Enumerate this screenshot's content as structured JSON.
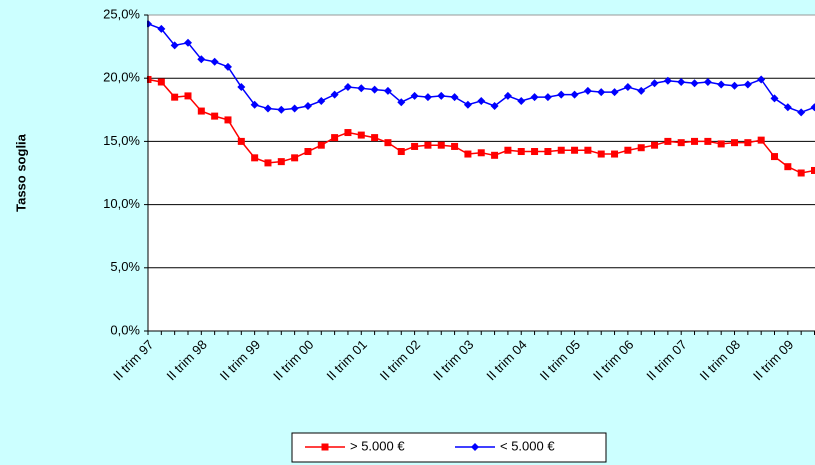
{
  "chart_data": {
    "type": "line",
    "y_label": "Tasso soglia",
    "categories": [
      "II trim 97",
      null,
      null,
      null,
      "II trim 98",
      null,
      null,
      null,
      "II trim 99",
      null,
      null,
      null,
      "II trim 00",
      null,
      null,
      null,
      "II trim 01",
      null,
      null,
      null,
      "II trim 02",
      null,
      null,
      null,
      "II trim 03",
      null,
      null,
      null,
      "II trim 04",
      null,
      null,
      null,
      "II trim 05",
      null,
      null,
      null,
      "II trim 06",
      null,
      null,
      null,
      "II trim 07",
      null,
      null,
      null,
      "II trim 08",
      null,
      null,
      null,
      "II trim 09",
      null,
      null
    ],
    "series": [
      {
        "name": "> 5.000 €",
        "color": "#ff0000",
        "marker": "square",
        "values": [
          19.9,
          19.7,
          18.5,
          18.6,
          17.4,
          17.0,
          16.7,
          15.0,
          13.7,
          13.3,
          13.4,
          13.7,
          14.2,
          14.7,
          15.3,
          15.7,
          15.5,
          15.3,
          14.9,
          14.2,
          14.6,
          14.7,
          14.7,
          14.6,
          14.0,
          14.1,
          13.9,
          14.3,
          14.2,
          14.2,
          14.2,
          14.3,
          14.3,
          14.3,
          14.0,
          14.0,
          14.3,
          14.5,
          14.7,
          15.0,
          14.9,
          15.0,
          15.0,
          14.8,
          14.9,
          14.9,
          15.1,
          13.8,
          13.0,
          12.5,
          12.7
        ]
      },
      {
        "name": "< 5.000 €",
        "color": "#0000ff",
        "marker": "diamond",
        "values": [
          24.3,
          23.9,
          22.6,
          22.8,
          21.5,
          21.3,
          20.9,
          19.3,
          17.9,
          17.6,
          17.5,
          17.6,
          17.8,
          18.2,
          18.7,
          19.3,
          19.2,
          19.1,
          19.0,
          18.1,
          18.6,
          18.5,
          18.6,
          18.5,
          17.9,
          18.2,
          17.8,
          18.6,
          18.2,
          18.5,
          18.5,
          18.7,
          18.7,
          19.0,
          18.9,
          18.9,
          19.3,
          19.0,
          19.6,
          19.8,
          19.7,
          19.6,
          19.7,
          19.5,
          19.4,
          19.5,
          19.9,
          18.4,
          17.7,
          17.3,
          17.7
        ]
      }
    ],
    "ylim": [
      0,
      25
    ],
    "yticks": [
      {
        "value": 0,
        "label": "0,0%"
      },
      {
        "value": 5,
        "label": "5,0%"
      },
      {
        "value": 10,
        "label": "10,0%"
      },
      {
        "value": 15,
        "label": "15,0%"
      },
      {
        "value": 20,
        "label": "20,0%"
      },
      {
        "value": 25,
        "label": "25,0%"
      }
    ],
    "grid": true,
    "legend": "bottom"
  }
}
